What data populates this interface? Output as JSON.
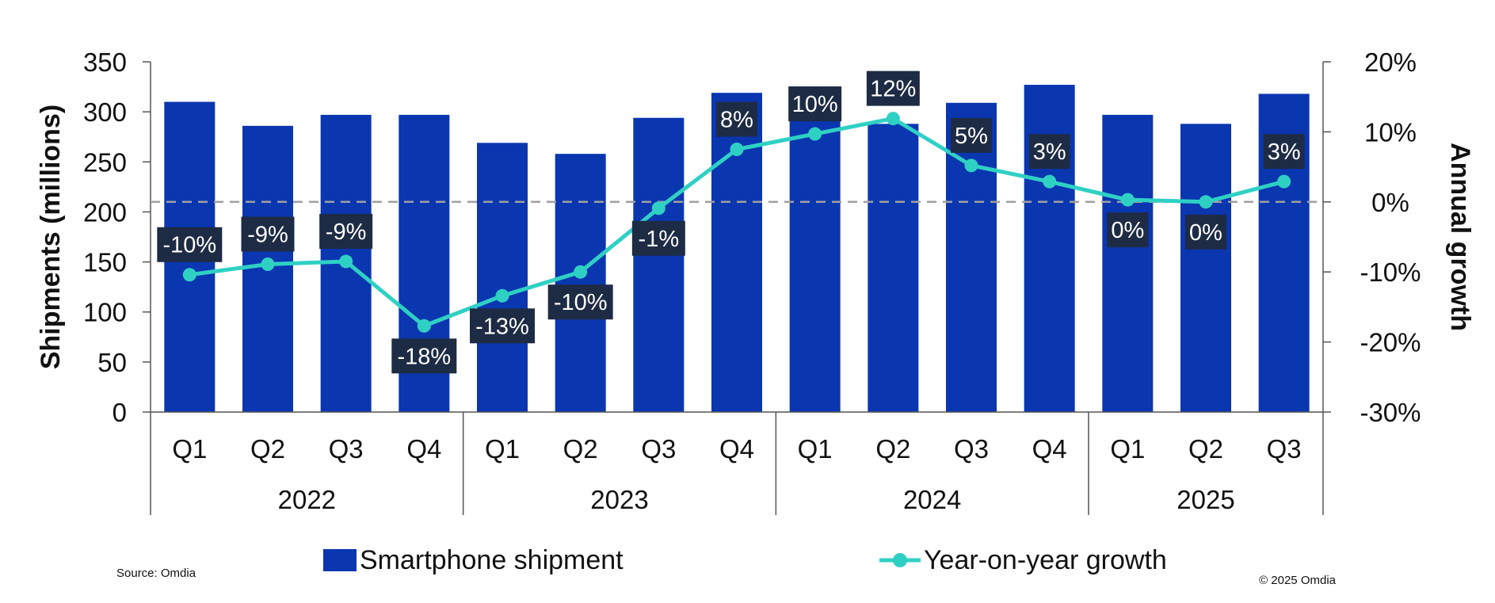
{
  "chart_data": {
    "type": "bar+line",
    "title": "",
    "categories": [
      "Q1",
      "Q2",
      "Q3",
      "Q4",
      "Q1",
      "Q2",
      "Q3",
      "Q4",
      "Q1",
      "Q2",
      "Q3",
      "Q4",
      "Q1",
      "Q2",
      "Q3"
    ],
    "groups": [
      {
        "label": "2022",
        "count": 4
      },
      {
        "label": "2023",
        "count": 4
      },
      {
        "label": "2024",
        "count": 4
      },
      {
        "label": "2025",
        "count": 3
      }
    ],
    "series": [
      {
        "name": "Smartphone shipment",
        "type": "bar",
        "axis": "left",
        "color": "#0a36b0",
        "values": [
          310,
          286,
          297,
          297,
          269,
          258,
          294,
          319,
          295,
          288,
          309,
          327,
          297,
          288,
          318
        ]
      },
      {
        "name": "Year-on-year growth",
        "type": "line",
        "axis": "right",
        "color": "#2fd0c4",
        "values": [
          -10.4,
          -8.9,
          -8.5,
          -17.7,
          -13.4,
          -10.0,
          -0.9,
          7.5,
          9.7,
          11.9,
          5.2,
          2.9,
          0.3,
          0.0,
          2.9
        ],
        "labels": [
          "-10%",
          "-9%",
          "-9%",
          "-18%",
          "-13%",
          "-10%",
          "-1%",
          "8%",
          "10%",
          "12%",
          "5%",
          "3%",
          "0%",
          "0%",
          "3%"
        ]
      }
    ],
    "ylabel": "Shipments (millions)",
    "y2label": "Annual growth",
    "ylim": [
      0,
      350
    ],
    "yticks": [
      "0",
      "50",
      "100",
      "150",
      "200",
      "250",
      "300",
      "350"
    ],
    "y2lim": [
      -30,
      20
    ],
    "y2ticks": [
      "-30%",
      "-20%",
      "-10%",
      "0%",
      "10%",
      "20%"
    ],
    "label_color": "#1e2b44",
    "zero_line_color": "#a0a0a0"
  },
  "source": "Source: Omdia",
  "copyright": "© 2025 Omdia"
}
